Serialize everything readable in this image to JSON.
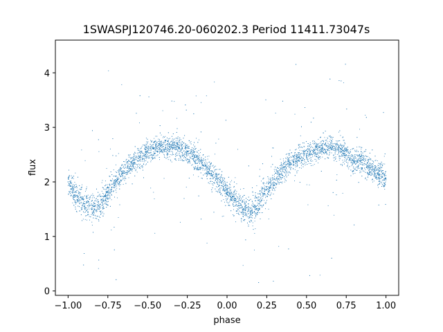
{
  "chart_data": {
    "type": "scatter",
    "title": "1SWASPJ120746.20-060202.3 Period 11411.73047s",
    "xlabel": "phase",
    "ylabel": "flux",
    "xlim": [
      -1.08,
      1.08
    ],
    "ylim": [
      -0.08,
      4.6
    ],
    "xticks": [
      -1.0,
      -0.75,
      -0.5,
      -0.25,
      0.0,
      0.25,
      0.5,
      0.75,
      1.0
    ],
    "xtick_labels": [
      "−1.00",
      "−0.75",
      "−0.50",
      "−0.25",
      "0.00",
      "0.25",
      "0.50",
      "0.75",
      "1.00"
    ],
    "yticks": [
      0,
      1,
      2,
      3,
      4
    ],
    "ytick_labels": [
      "0",
      "1",
      "2",
      "3",
      "4"
    ],
    "grid": false,
    "marker_color": "#1f77b4",
    "series": [
      {
        "x": [
          -1.0,
          -0.95,
          -0.9,
          -0.85,
          -0.8,
          -0.75,
          -0.7,
          -0.65,
          -0.6,
          -0.55,
          -0.5,
          -0.45,
          -0.4,
          -0.35,
          -0.3,
          -0.25,
          -0.2,
          -0.15,
          -0.1,
          -0.05,
          0.0,
          0.05,
          0.1,
          0.15,
          0.2,
          0.25,
          0.3,
          0.35,
          0.4,
          0.45,
          0.5,
          0.55,
          0.6,
          0.65,
          0.7,
          0.75,
          0.8,
          0.85,
          0.9,
          0.95,
          1.0
        ],
        "y": [
          2.0,
          1.75,
          1.6,
          1.5,
          1.55,
          1.8,
          2.0,
          2.2,
          2.35,
          2.45,
          2.55,
          2.6,
          2.65,
          2.65,
          2.62,
          2.55,
          2.45,
          2.3,
          2.15,
          2.0,
          1.85,
          1.65,
          1.5,
          1.45,
          1.6,
          1.85,
          2.05,
          2.2,
          2.35,
          2.45,
          2.52,
          2.58,
          2.62,
          2.64,
          2.6,
          2.5,
          2.42,
          2.35,
          2.25,
          2.15,
          2.05
        ],
        "spread": [
          0.2,
          0.22,
          0.25,
          0.25,
          0.25,
          0.22,
          0.2,
          0.2,
          0.18,
          0.18,
          0.18,
          0.18,
          0.18,
          0.2,
          0.2,
          0.2,
          0.2,
          0.2,
          0.2,
          0.2,
          0.2,
          0.22,
          0.25,
          0.25,
          0.25,
          0.22,
          0.2,
          0.2,
          0.18,
          0.18,
          0.18,
          0.18,
          0.2,
          0.2,
          0.2,
          0.2,
          0.2,
          0.2,
          0.2,
          0.2,
          0.2
        ]
      }
    ]
  }
}
